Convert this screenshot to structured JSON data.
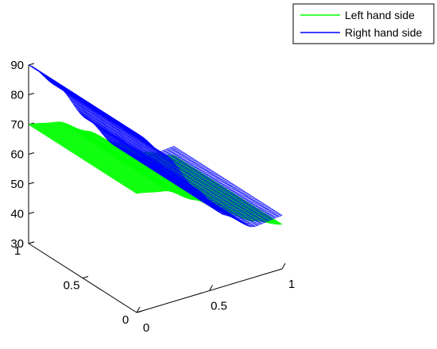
{
  "chart_data": {
    "type": "surface",
    "title": "",
    "xlabel": "",
    "ylabel": "",
    "zlabel": "",
    "xlim": [
      0,
      1
    ],
    "ylim": [
      0,
      1
    ],
    "zlim": [
      30,
      90
    ],
    "x_ticks": [
      {
        "v": 0,
        "label": "0"
      },
      {
        "v": 0.5,
        "label": "0.5"
      },
      {
        "v": 1,
        "label": "1"
      }
    ],
    "y_ticks": [
      {
        "v": 0,
        "label": "0"
      },
      {
        "v": 0.5,
        "label": "0.5"
      },
      {
        "v": 1,
        "label": "1"
      }
    ],
    "z_ticks": [
      {
        "v": 30,
        "label": "30"
      },
      {
        "v": 40,
        "label": "40"
      },
      {
        "v": 50,
        "label": "50"
      },
      {
        "v": 60,
        "label": "60"
      },
      {
        "v": 70,
        "label": "70"
      },
      {
        "v": 80,
        "label": "80"
      },
      {
        "v": 90,
        "label": "90"
      }
    ],
    "grid": false,
    "legend_position": "top-right",
    "series": [
      {
        "name": "Left hand side",
        "color": "#00ff00",
        "x": [
          0,
          0.2,
          0.4,
          0.6,
          0.8,
          1
        ],
        "z_at_x": [
          70,
          68,
          62,
          55,
          49,
          45
        ],
        "z_along_y": "constant"
      },
      {
        "name": "Right hand side",
        "color": "#0000ff",
        "x": [
          0,
          0.2,
          0.4,
          0.6,
          0.8,
          1
        ],
        "z_at_x": [
          90,
          80,
          66,
          54,
          47,
          48
        ],
        "z_along_y": "constant"
      }
    ]
  }
}
